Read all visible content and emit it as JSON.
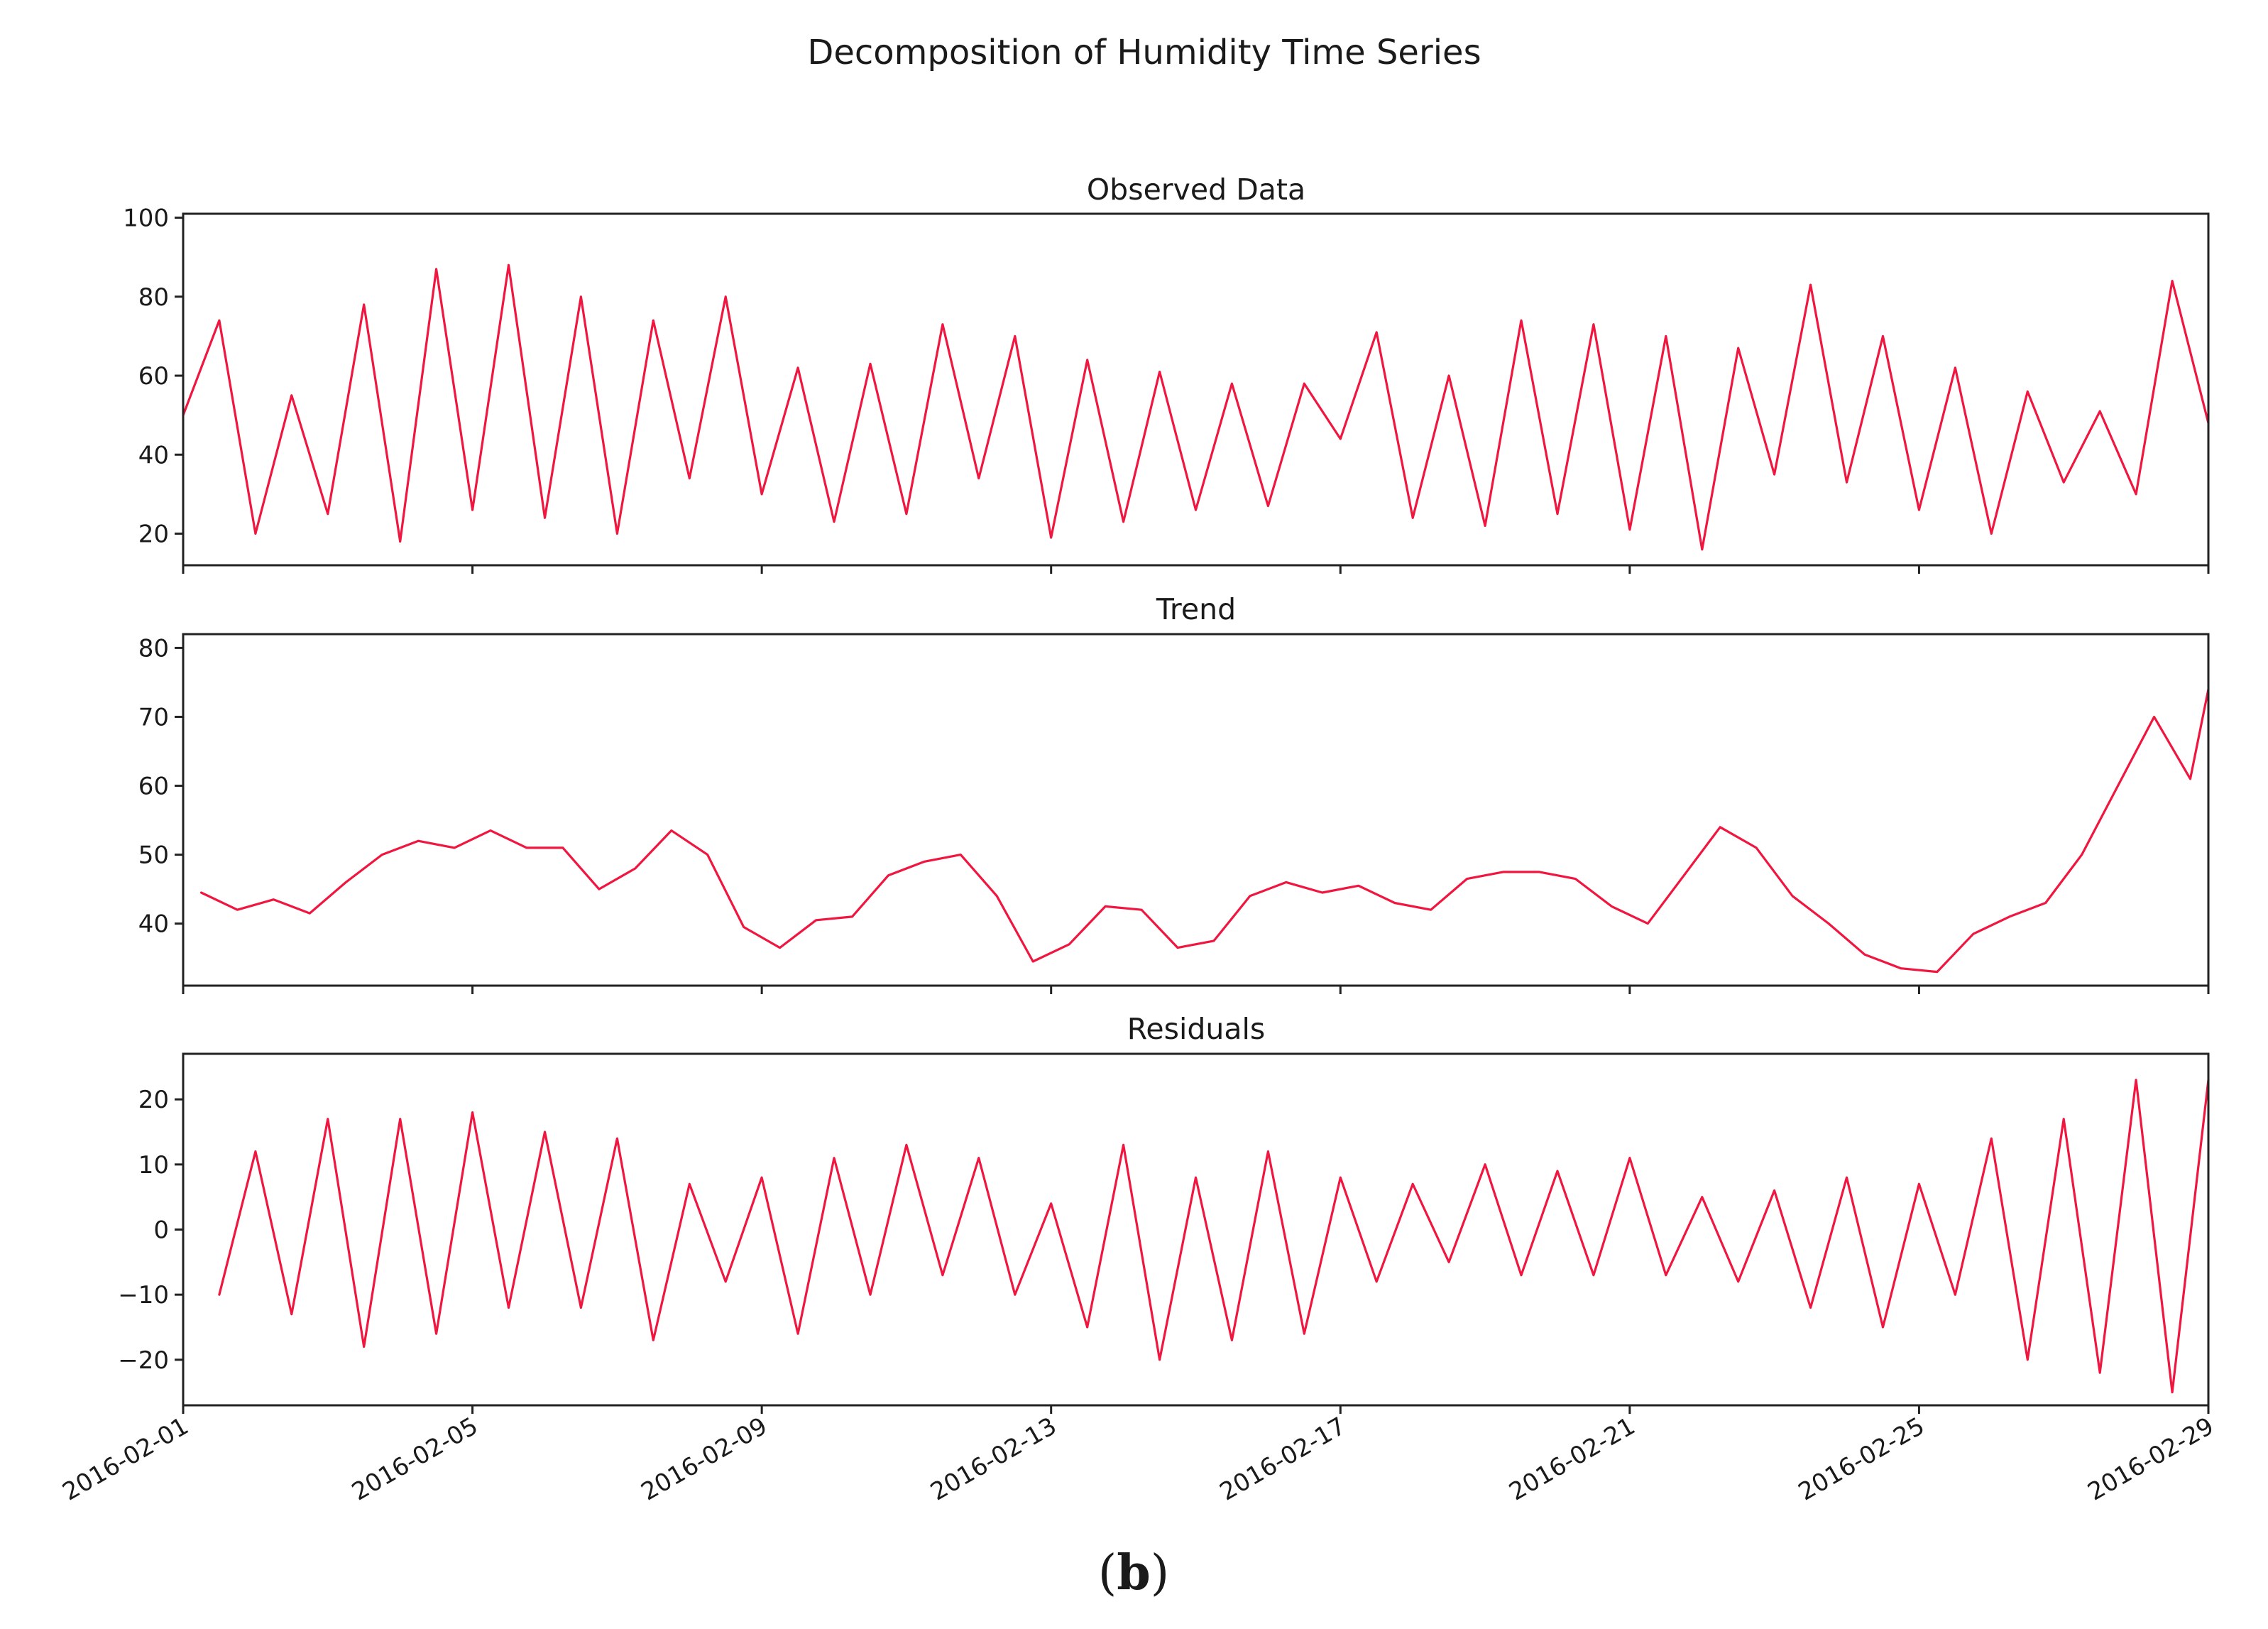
{
  "figure": {
    "title": "Decomposition of Humidity Time Series",
    "caption": "(b)",
    "line_color": "#f0163f"
  },
  "chart_data": [
    {
      "type": "line",
      "id": "observed",
      "title": "Observed Data",
      "xlabel": "",
      "ylabel": "",
      "ylim": [
        12,
        101
      ],
      "yticks": [
        20,
        40,
        60,
        80,
        100
      ],
      "x": [
        0,
        0.5,
        1,
        1.5,
        2,
        2.5,
        3,
        3.5,
        4,
        4.5,
        5,
        5.5,
        6,
        6.5,
        7,
        7.5,
        8,
        8.5,
        9,
        9.5,
        10,
        10.5,
        11,
        11.5,
        12,
        12.5,
        13,
        13.5,
        14,
        14.5,
        15,
        15.5,
        16,
        16.5,
        17,
        17.5,
        18,
        18.5,
        19,
        19.5,
        20,
        20.5,
        21,
        21.5,
        22,
        22.5,
        23,
        23.5,
        24,
        24.5,
        25,
        25.5,
        26,
        26.5,
        27,
        27.5,
        28
      ],
      "values": [
        50,
        74,
        20,
        55,
        25,
        78,
        18,
        87,
        26,
        88,
        24,
        80,
        20,
        74,
        34,
        80,
        30,
        62,
        23,
        63,
        25,
        73,
        34,
        70,
        19,
        64,
        23,
        61,
        26,
        58,
        27,
        58,
        44,
        71,
        24,
        60,
        22,
        74,
        25,
        73,
        21,
        70,
        16,
        67,
        35,
        83,
        33,
        70,
        26,
        62,
        20,
        56,
        33,
        51,
        30,
        84,
        48
      ]
    },
    {
      "type": "line",
      "id": "trend",
      "title": "Trend",
      "xlabel": "",
      "ylabel": "",
      "ylim": [
        31,
        82
      ],
      "yticks": [
        40,
        50,
        60,
        70,
        80
      ],
      "x": [
        0.25,
        0.75,
        1.25,
        1.75,
        2.25,
        2.75,
        3.25,
        3.75,
        4.25,
        4.75,
        5.25,
        5.75,
        6.25,
        6.75,
        7.25,
        7.75,
        8.25,
        8.75,
        9.25,
        9.75,
        10.25,
        10.75,
        11.25,
        11.75,
        12.25,
        12.75,
        13.25,
        13.75,
        14.25,
        14.75,
        15.25,
        15.75,
        16.25,
        16.75,
        17.25,
        17.75,
        18.25,
        18.75,
        19.25,
        19.75,
        20.25,
        20.75,
        21.25,
        21.75,
        22.25,
        22.75,
        23.25,
        23.75,
        24.25,
        24.75,
        25.25,
        25.75,
        26.25,
        26.75,
        27.25,
        27.75,
        28
      ],
      "values": [
        44.5,
        42,
        43.5,
        41.5,
        46,
        50,
        52,
        51,
        53.5,
        51,
        51,
        45,
        48,
        53.5,
        50,
        39.5,
        36.5,
        40.5,
        41,
        47,
        49,
        50,
        44,
        34.5,
        37,
        42.5,
        42,
        36.5,
        37.5,
        44,
        46,
        44.5,
        45.5,
        43,
        42,
        46.5,
        47.5,
        47.5,
        46.5,
        42.5,
        40,
        47,
        54,
        51,
        44,
        40,
        35.5,
        33.5,
        33,
        38.5,
        41,
        43,
        50,
        60,
        70,
        61,
        74
      ]
    },
    {
      "type": "line",
      "id": "residuals",
      "title": "Residuals",
      "xlabel": "",
      "ylabel": "",
      "ylim": [
        -27,
        27
      ],
      "yticks": [
        -20,
        -10,
        0,
        10,
        20
      ],
      "x": [
        0.5,
        1,
        1.5,
        2,
        2.5,
        3,
        3.5,
        4,
        4.5,
        5,
        5.5,
        6,
        6.5,
        7,
        7.5,
        8,
        8.5,
        9,
        9.5,
        10,
        10.5,
        11,
        11.5,
        12,
        12.5,
        13,
        13.5,
        14,
        14.5,
        15,
        15.5,
        16,
        16.5,
        17,
        17.5,
        18,
        18.5,
        19,
        19.5,
        20,
        20.5,
        21,
        21.5,
        22,
        22.5,
        23,
        23.5,
        24,
        24.5,
        25,
        25.5,
        26,
        26.5,
        27,
        27.5,
        28
      ],
      "values": [
        -10,
        12,
        -13,
        17,
        -18,
        17,
        -16,
        18,
        -12,
        15,
        -12,
        14,
        -17,
        7,
        -8,
        8,
        -16,
        11,
        -10,
        13,
        -7,
        11,
        -10,
        4,
        -15,
        13,
        -20,
        8,
        -17,
        12,
        -16,
        8,
        -8,
        7,
        -5,
        10,
        -7,
        9,
        -7,
        11,
        -7,
        5,
        -8,
        6,
        -12,
        8,
        -15,
        7,
        -10,
        14,
        -20,
        17,
        -22,
        23,
        -25,
        23
      ]
    }
  ],
  "x_axis": {
    "tick_labels": [
      "2016-02-01",
      "2016-02-05",
      "2016-02-09",
      "2016-02-13",
      "2016-02-17",
      "2016-02-21",
      "2016-02-25",
      "2016-02-29"
    ],
    "tick_positions": [
      0,
      4,
      8,
      12,
      16,
      20,
      24,
      28
    ],
    "range": [
      0,
      28
    ]
  }
}
